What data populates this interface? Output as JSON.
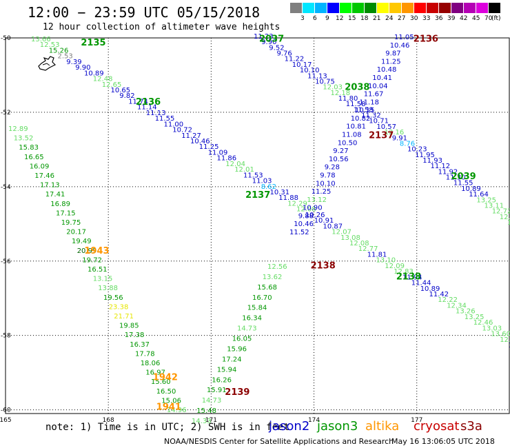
{
  "header": {
    "title": "12:00 − 23:59 UTC 05/15/2018",
    "subtitle": "12 hour collection of altimeter wave heights"
  },
  "colorbar": {
    "unit": "(ft)",
    "swatches": [
      {
        "color": "#7f7f7f",
        "label": "3"
      },
      {
        "color": "#00e6ff",
        "label": "6"
      },
      {
        "color": "#00b4ff",
        "label": "9"
      },
      {
        "color": "#0000ff",
        "label": "12"
      },
      {
        "color": "#00ff00",
        "label": "15"
      },
      {
        "color": "#00c800",
        "label": "18"
      },
      {
        "color": "#008c00",
        "label": "21"
      },
      {
        "color": "#ffff00",
        "label": "24"
      },
      {
        "color": "#ffc800",
        "label": "27"
      },
      {
        "color": "#ff9600",
        "label": "30"
      },
      {
        "color": "#ff0000",
        "label": "33"
      },
      {
        "color": "#c80000",
        "label": "36"
      },
      {
        "color": "#960000",
        "label": "39"
      },
      {
        "color": "#800080",
        "label": "42"
      },
      {
        "color": "#b400b4",
        "label": "45"
      },
      {
        "color": "#dc00dc",
        "label": "70"
      },
      {
        "color": "#000000",
        "label": ""
      }
    ]
  },
  "map": {
    "lon_ticks": [
      "165",
      "168",
      "171",
      "174",
      "177"
    ],
    "lat_ticks": [
      "-50",
      "-52",
      "-54",
      "-56",
      "-58",
      "-60"
    ],
    "pass_labels": [
      {
        "text": "2135",
        "color": "#009600",
        "lon": 167.2,
        "lat": -50.2
      },
      {
        "text": "2136",
        "color": "#009600",
        "lon": 168.8,
        "lat": -51.8
      },
      {
        "text": "2037",
        "color": "#009600",
        "lon": 172.4,
        "lat": -50.1
      },
      {
        "text": "2038",
        "color": "#009600",
        "lon": 174.9,
        "lat": -51.4
      },
      {
        "text": "2136",
        "color": "#8b0000",
        "lon": 176.9,
        "lat": -50.1
      },
      {
        "text": "2137",
        "color": "#8b0000",
        "lon": 175.6,
        "lat": -52.7
      },
      {
        "text": "2039",
        "color": "#009600",
        "lon": 178.0,
        "lat": -53.8
      },
      {
        "text": "2137",
        "color": "#009600",
        "lon": 172.0,
        "lat": -54.3
      },
      {
        "text": "1943",
        "color": "#ff9600",
        "lon": 167.3,
        "lat": -55.8
      },
      {
        "text": "2138",
        "color": "#8b0000",
        "lon": 173.9,
        "lat": -56.2
      },
      {
        "text": "2138",
        "color": "#009600",
        "lon": 176.4,
        "lat": -56.5
      },
      {
        "text": "1942",
        "color": "#ff9600",
        "lon": 169.3,
        "lat": -59.2
      },
      {
        "text": "2139",
        "color": "#8b0000",
        "lon": 171.4,
        "lat": -59.6
      },
      {
        "text": "1941",
        "color": "#ff9600",
        "lon": 169.4,
        "lat": -60.0
      }
    ],
    "tracks": [
      {
        "name": "desc-a",
        "points": [
          {
            "v": "13.66",
            "c": "#64dc64"
          },
          {
            "v": "12.53",
            "c": "#64dc64"
          },
          {
            "v": "15.26",
            "c": "#009600"
          },
          {
            "v": "2.53",
            "c": "#7f7f7f"
          },
          {
            "v": "9.39",
            "c": "#0000c8"
          },
          {
            "v": "9.90",
            "c": "#0000c8"
          },
          {
            "v": "10.89",
            "c": "#0000c8"
          },
          {
            "v": "12.48",
            "c": "#64dc64"
          },
          {
            "v": "12.65",
            "c": "#64dc64"
          },
          {
            "v": "10.65",
            "c": "#0000c8"
          },
          {
            "v": "9.82",
            "c": "#0000c8"
          },
          {
            "v": "11.74",
            "c": "#0000c8"
          },
          {
            "v": "11.14",
            "c": "#0000c8"
          },
          {
            "v": "11.13",
            "c": "#0000c8"
          },
          {
            "v": "11.55",
            "c": "#0000c8"
          },
          {
            "v": "11.00",
            "c": "#0000c8"
          },
          {
            "v": "10.72",
            "c": "#0000c8"
          },
          {
            "v": "11.27",
            "c": "#0000c8"
          },
          {
            "v": "10.46",
            "c": "#0000c8"
          },
          {
            "v": "11.25",
            "c": "#0000c8"
          },
          {
            "v": "11.09",
            "c": "#0000c8"
          },
          {
            "v": "11.86",
            "c": "#0000c8"
          },
          {
            "v": "12.04",
            "c": "#64dc64"
          },
          {
            "v": "12.01",
            "c": "#64dc64"
          },
          {
            "v": "11.53",
            "c": "#0000c8"
          },
          {
            "v": "11.03",
            "c": "#0000c8"
          },
          {
            "v": "8.62",
            "c": "#00b4ff"
          },
          {
            "v": "10.31",
            "c": "#0000c8"
          },
          {
            "v": "11.88",
            "c": "#0000c8"
          },
          {
            "v": "12.29",
            "c": "#64dc64"
          },
          {
            "v": "12.08",
            "c": "#64dc64"
          },
          {
            "v": "10.26",
            "c": "#0000c8"
          },
          {
            "v": "10.91",
            "c": "#0000c8"
          },
          {
            "v": "10.87",
            "c": "#0000c8"
          },
          {
            "v": "12.07",
            "c": "#64dc64"
          },
          {
            "v": "13.08",
            "c": "#64dc64"
          },
          {
            "v": "12.08",
            "c": "#64dc64"
          },
          {
            "v": "12.77",
            "c": "#64dc64"
          },
          {
            "v": "11.81",
            "c": "#0000c8"
          },
          {
            "v": "13.10",
            "c": "#64dc64"
          },
          {
            "v": "12.09",
            "c": "#64dc64"
          },
          {
            "v": "12.83",
            "c": "#64dc64"
          },
          {
            "v": "11.94",
            "c": "#0000c8"
          },
          {
            "v": "11.44",
            "c": "#0000c8"
          },
          {
            "v": "10.89",
            "c": "#0000c8"
          },
          {
            "v": "11.42",
            "c": "#0000c8"
          },
          {
            "v": "12.22",
            "c": "#64dc64"
          },
          {
            "v": "12.34",
            "c": "#64dc64"
          },
          {
            "v": "13.26",
            "c": "#64dc64"
          },
          {
            "v": "13.25",
            "c": "#64dc64"
          },
          {
            "v": "12.46",
            "c": "#64dc64"
          },
          {
            "v": "13.03",
            "c": "#64dc64"
          },
          {
            "v": "13.60",
            "c": "#64dc64"
          },
          {
            "v": "12.28",
            "c": "#64dc64"
          },
          {
            "v": "11.36",
            "c": "#0000c8"
          }
        ]
      },
      {
        "name": "desc-b",
        "points": [
          {
            "v": "11.23",
            "c": "#0000c8"
          },
          {
            "v": "9.90",
            "c": "#0000c8"
          },
          {
            "v": "9.52",
            "c": "#0000c8"
          },
          {
            "v": "9.76",
            "c": "#0000c8"
          },
          {
            "v": "11.22",
            "c": "#0000c8"
          },
          {
            "v": "10.17",
            "c": "#0000c8"
          },
          {
            "v": "10.10",
            "c": "#0000c8"
          },
          {
            "v": "11.13",
            "c": "#0000c8"
          },
          {
            "v": "10.75",
            "c": "#0000c8"
          },
          {
            "v": "12.03",
            "c": "#64dc64"
          },
          {
            "v": "12.18",
            "c": "#64dc64"
          },
          {
            "v": "11.80",
            "c": "#0000c8"
          },
          {
            "v": "11.58",
            "c": "#0000c8"
          },
          {
            "v": "11.58",
            "c": "#0000c8"
          },
          {
            "v": "11.32",
            "c": "#0000c8"
          },
          {
            "v": "10.71",
            "c": "#0000c8"
          },
          {
            "v": "10.57",
            "c": "#0000c8"
          },
          {
            "v": "12.16",
            "c": "#64dc64"
          },
          {
            "v": "9.91",
            "c": "#0000c8"
          },
          {
            "v": "8.76",
            "c": "#00b4ff"
          },
          {
            "v": "10.23",
            "c": "#0000c8"
          },
          {
            "v": "11.95",
            "c": "#0000c8"
          },
          {
            "v": "11.93",
            "c": "#0000c8"
          },
          {
            "v": "11.12",
            "c": "#0000c8"
          },
          {
            "v": "11.92",
            "c": "#0000c8"
          },
          {
            "v": "11.30",
            "c": "#0000c8"
          },
          {
            "v": "11.55",
            "c": "#0000c8"
          },
          {
            "v": "10.89",
            "c": "#0000c8"
          },
          {
            "v": "11.64",
            "c": "#0000c8"
          },
          {
            "v": "13.25",
            "c": "#64dc64"
          },
          {
            "v": "13.11",
            "c": "#64dc64"
          },
          {
            "v": "12.72",
            "c": "#64dc64"
          },
          {
            "v": "12.47",
            "c": "#64dc64"
          },
          {
            "v": "13.",
            "c": "#64dc64"
          }
        ]
      },
      {
        "name": "asc-c",
        "points": [
          {
            "v": "11.05",
            "c": "#0000c8"
          },
          {
            "v": "10.46",
            "c": "#0000c8"
          },
          {
            "v": "9.87",
            "c": "#0000c8"
          },
          {
            "v": "11.25",
            "c": "#0000c8"
          },
          {
            "v": "10.48",
            "c": "#0000c8"
          },
          {
            "v": "10.41",
            "c": "#0000c8"
          },
          {
            "v": "10.04",
            "c": "#0000c8"
          },
          {
            "v": "11.67",
            "c": "#0000c8"
          },
          {
            "v": "11.18",
            "c": "#0000c8"
          },
          {
            "v": "10.15",
            "c": "#0000c8"
          },
          {
            "v": "10.82",
            "c": "#0000c8"
          },
          {
            "v": "10.81",
            "c": "#0000c8"
          },
          {
            "v": "11.08",
            "c": "#0000c8"
          },
          {
            "v": "10.50",
            "c": "#0000c8"
          },
          {
            "v": "9.27",
            "c": "#0000c8"
          },
          {
            "v": "10.56",
            "c": "#0000c8"
          },
          {
            "v": "9.28",
            "c": "#0000c8"
          },
          {
            "v": "9.78",
            "c": "#0000c8"
          },
          {
            "v": "10.10",
            "c": "#0000c8"
          },
          {
            "v": "11.25",
            "c": "#0000c8"
          },
          {
            "v": "13.12",
            "c": "#64dc64"
          },
          {
            "v": "10.90",
            "c": "#0000c8"
          },
          {
            "v": "9.88",
            "c": "#0000c8"
          },
          {
            "v": "10.46",
            "c": "#0000c8"
          },
          {
            "v": "11.52",
            "c": "#0000c8"
          }
        ]
      },
      {
        "name": "asc-d",
        "points": [
          {
            "v": "12.56",
            "c": "#64dc64"
          },
          {
            "v": "13.62",
            "c": "#64dc64"
          },
          {
            "v": "15.68",
            "c": "#009600"
          },
          {
            "v": "16.70",
            "c": "#009600"
          },
          {
            "v": "15.84",
            "c": "#009600"
          },
          {
            "v": "16.34",
            "c": "#009600"
          },
          {
            "v": "14.73",
            "c": "#64dc64"
          },
          {
            "v": "16.05",
            "c": "#009600"
          },
          {
            "v": "15.96",
            "c": "#009600"
          },
          {
            "v": "17.24",
            "c": "#009600"
          },
          {
            "v": "15.94",
            "c": "#009600"
          },
          {
            "v": "16.26",
            "c": "#009600"
          },
          {
            "v": "15.91",
            "c": "#009600"
          },
          {
            "v": "14.73",
            "c": "#64dc64"
          },
          {
            "v": "15.48",
            "c": "#009600"
          },
          {
            "v": "14.33",
            "c": "#64dc64"
          }
        ]
      },
      {
        "name": "desc-e",
        "points": [
          {
            "v": "12.89",
            "c": "#64dc64"
          },
          {
            "v": "13.52",
            "c": "#64dc64"
          },
          {
            "v": "15.83",
            "c": "#009600"
          },
          {
            "v": "16.65",
            "c": "#009600"
          },
          {
            "v": "16.09",
            "c": "#009600"
          },
          {
            "v": "17.46",
            "c": "#009600"
          },
          {
            "v": "17.13",
            "c": "#009600"
          },
          {
            "v": "17.41",
            "c": "#009600"
          },
          {
            "v": "16.89",
            "c": "#009600"
          },
          {
            "v": "17.15",
            "c": "#009600"
          },
          {
            "v": "19.75",
            "c": "#009600"
          },
          {
            "v": "20.17",
            "c": "#009600"
          },
          {
            "v": "19.49",
            "c": "#009600"
          },
          {
            "v": "20.99",
            "c": "#006400"
          },
          {
            "v": "19.72",
            "c": "#009600"
          },
          {
            "v": "16.51",
            "c": "#009600"
          },
          {
            "v": "13.15",
            "c": "#64dc64"
          },
          {
            "v": "13.88",
            "c": "#64dc64"
          },
          {
            "v": "19.56",
            "c": "#009600"
          },
          {
            "v": "23.38",
            "c": "#e6e600"
          },
          {
            "v": "21.71",
            "c": "#e6e600"
          },
          {
            "v": "19.85",
            "c": "#009600"
          },
          {
            "v": "17.38",
            "c": "#009600"
          },
          {
            "v": "16.37",
            "c": "#009600"
          },
          {
            "v": "17.78",
            "c": "#009600"
          },
          {
            "v": "18.06",
            "c": "#009600"
          },
          {
            "v": "16.97",
            "c": "#009600"
          },
          {
            "v": "15.60",
            "c": "#009600"
          },
          {
            "v": "16.50",
            "c": "#009600"
          },
          {
            "v": "15.06",
            "c": "#009600"
          },
          {
            "v": "14.96",
            "c": "#64dc64"
          }
        ]
      }
    ]
  },
  "footer": {
    "note": "note: 1) Time is in UTC; 2) SWH is in feet",
    "legend": [
      {
        "text": "jason2",
        "color": "#0000c8"
      },
      {
        "text": "jason3",
        "color": "#009600"
      },
      {
        "text": "altika",
        "color": "#ff9600"
      },
      {
        "text": "cryosat",
        "color": "#c80000"
      },
      {
        "text": "s3a",
        "color": "#8b0000"
      }
    ],
    "credit": "NOAA/NESDIS Center for Satellite Applications and Research",
    "stamp": "May 16 13:06:05 UTC 2018"
  }
}
